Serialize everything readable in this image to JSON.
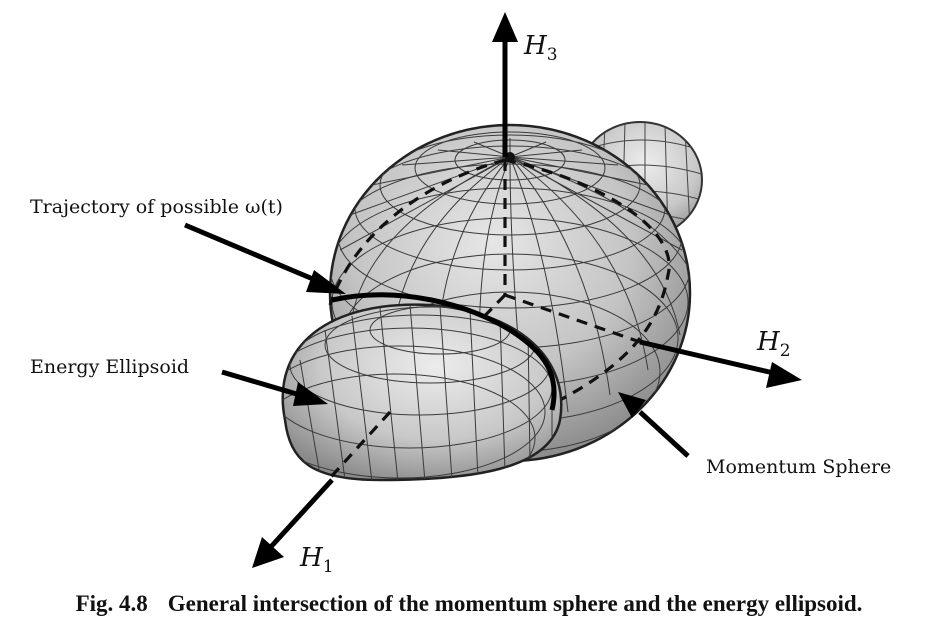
{
  "labels": {
    "trajectory": "Trajectory of possible ω(t)",
    "ellipsoid": "Energy Ellipsoid",
    "sphere": "Momentum Sphere"
  },
  "axes": {
    "h1": {
      "symbol": "H",
      "sub": "1"
    },
    "h2": {
      "symbol": "H",
      "sub": "2"
    },
    "h3": {
      "symbol": "H",
      "sub": "3"
    }
  },
  "caption": {
    "number": "Fig. 4.8",
    "text": "General intersection of the momentum sphere and the energy ellipsoid."
  },
  "colors": {
    "surface": "#c9c9c9",
    "surface_dark": "#9a9a9a",
    "mesh": "#3a3a3a",
    "ink": "#111111"
  }
}
